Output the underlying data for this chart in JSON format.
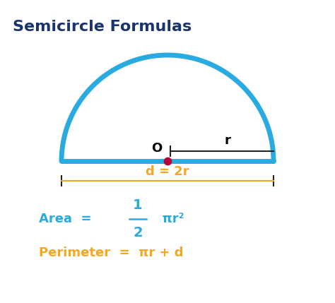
{
  "title": "Semicircle Formulas",
  "title_color": "#1a3470",
  "title_fontsize": 16,
  "bg_color": "#ffffff",
  "semicircle_color": "#29abe2",
  "semicircle_linewidth": 5,
  "center_dot_color": "#b5003c",
  "O_label": "O",
  "r_label": "r",
  "d_label": "d = 2r",
  "d_label_color": "#f5a623",
  "area_label_color": "#29abe2",
  "perimeter_label_color": "#f5a623",
  "line_color": "#222222"
}
